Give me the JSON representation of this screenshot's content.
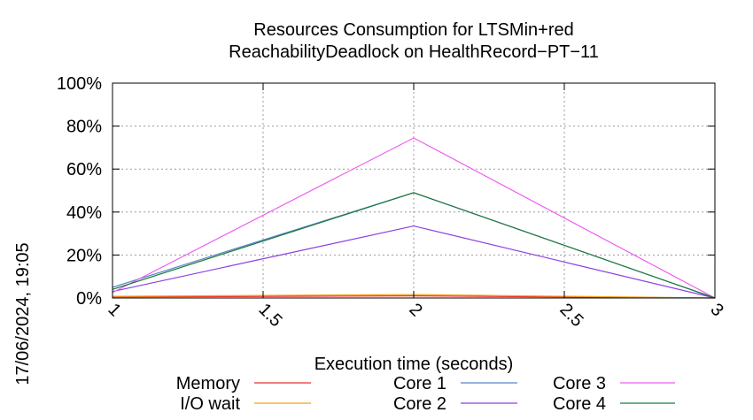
{
  "timestamp": "17/06/2024, 19:05",
  "chart_data": {
    "type": "line",
    "title": [
      "Resources Consumption for LTSMin+red",
      "ReachabilityDeadlock on HealthRecord−PT−11"
    ],
    "xlabel": "Execution time (seconds)",
    "ylabel": "",
    "xlim": [
      1,
      3
    ],
    "ylim": [
      0,
      100
    ],
    "x_ticks": [
      1,
      1.5,
      2,
      2.5,
      3
    ],
    "x_tick_labels": [
      "1",
      "1.5",
      "2",
      "2.5",
      "3"
    ],
    "y_ticks": [
      0,
      20,
      40,
      60,
      80,
      100
    ],
    "y_tick_labels": [
      "0%",
      "20%",
      "40%",
      "60%",
      "80%",
      "100%"
    ],
    "grid": true,
    "legend_position": "bottom",
    "x": [
      1,
      2,
      3
    ],
    "series": [
      {
        "name": "Memory",
        "color": "#e8312f",
        "values": [
          0.5,
          1.0,
          0
        ]
      },
      {
        "name": "I/O wait",
        "color": "#f5a21b",
        "values": [
          0.8,
          1.6,
          0
        ]
      },
      {
        "name": "Core 1",
        "color": "#5b85c8",
        "values": [
          5.0,
          49.0,
          0
        ]
      },
      {
        "name": "Core 2",
        "color": "#8a3ee0",
        "values": [
          3.0,
          33.5,
          0
        ]
      },
      {
        "name": "Core 3",
        "color": "#ef5ef0",
        "values": [
          2.5,
          74.5,
          0
        ]
      },
      {
        "name": "Core 4",
        "color": "#1d7a3b",
        "values": [
          4.0,
          49.0,
          0
        ]
      }
    ]
  }
}
